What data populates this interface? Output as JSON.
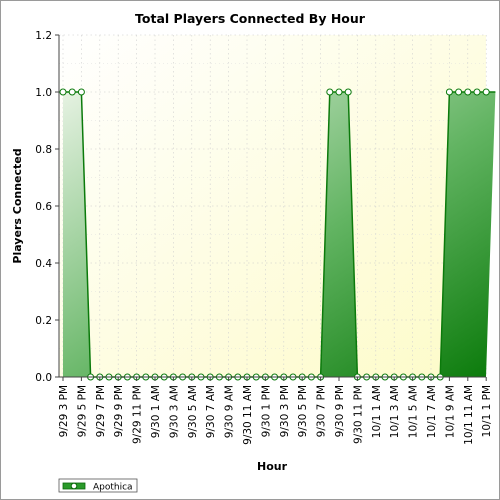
{
  "chart_data": {
    "type": "area",
    "title": "Total Players Connected By Hour",
    "xlabel": "Hour",
    "ylabel": "Players Connected",
    "ylim": [
      0,
      1.2
    ],
    "yticks": [
      "0.0",
      "0.2",
      "0.4",
      "0.6",
      "0.8",
      "1.0",
      "1.2"
    ],
    "grid": true,
    "legend_position": "bottom-left",
    "categories": [
      "9/29 3 PM",
      "9/29 5 PM",
      "9/29 7 PM",
      "9/29 9 PM",
      "9/29 11 PM",
      "9/30 1 AM",
      "9/30 3 AM",
      "9/30 5 AM",
      "9/30 7 AM",
      "9/30 9 AM",
      "9/30 11 AM",
      "9/30 1 PM",
      "9/30 3 PM",
      "9/30 5 PM",
      "9/30 7 PM",
      "9/30 9 PM",
      "9/30 11 PM",
      "10/1 1 AM",
      "10/1 3 AM",
      "10/1 5 AM",
      "10/1 7 AM",
      "10/1 9 AM",
      "10/1 11 AM",
      "10/1 1 PM"
    ],
    "series": [
      {
        "name": "Apothica",
        "color": "#1a8a1a",
        "x": [
          "9/29 3 PM",
          "9/29 4 PM",
          "9/29 5 PM",
          "9/29 6 PM",
          "9/29 7 PM",
          "9/29 8 PM",
          "9/29 9 PM",
          "9/29 10 PM",
          "9/29 11 PM",
          "9/30 12 AM",
          "9/30 1 AM",
          "9/30 2 AM",
          "9/30 3 AM",
          "9/30 4 AM",
          "9/30 5 AM",
          "9/30 6 AM",
          "9/30 7 AM",
          "9/30 8 AM",
          "9/30 9 AM",
          "9/30 10 AM",
          "9/30 11 AM",
          "9/30 12 PM",
          "9/30 1 PM",
          "9/30 2 PM",
          "9/30 3 PM",
          "9/30 4 PM",
          "9/30 5 PM",
          "9/30 6 PM",
          "9/30 7 PM",
          "9/30 8 PM",
          "9/30 9 PM",
          "9/30 10 PM",
          "9/30 11 PM",
          "10/1 12 AM",
          "10/1 1 AM",
          "10/1 2 AM",
          "10/1 3 AM",
          "10/1 4 AM",
          "10/1 5 AM",
          "10/1 6 AM",
          "10/1 7 AM",
          "10/1 8 AM",
          "10/1 9 AM",
          "10/1 10 AM",
          "10/1 11 AM",
          "10/1 12 PM",
          "10/1 1 PM",
          "10/1 2 PM"
        ],
        "values": [
          1,
          1,
          1,
          0,
          0,
          0,
          0,
          0,
          0,
          0,
          0,
          0,
          0,
          0,
          0,
          0,
          0,
          0,
          0,
          0,
          0,
          0,
          0,
          0,
          0,
          0,
          0,
          0,
          0,
          1,
          1,
          1,
          0,
          0,
          0,
          0,
          0,
          0,
          0,
          0,
          0,
          0,
          1,
          1,
          1,
          1,
          1,
          1
        ]
      }
    ]
  }
}
